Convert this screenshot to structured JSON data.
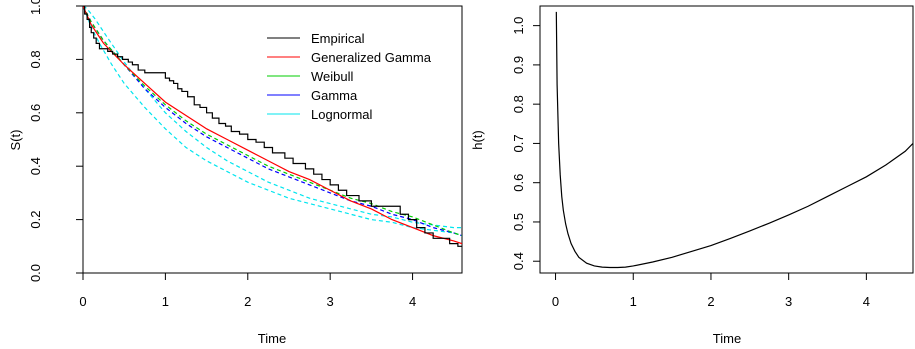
{
  "chart_data": [
    {
      "type": "line",
      "xlabel": "Time",
      "ylabel": "S(t)",
      "xlim": [
        0,
        4.6
      ],
      "ylim": [
        0,
        1.0
      ],
      "xticks": [
        "0",
        "1",
        "2",
        "3",
        "4"
      ],
      "yticks": [
        "0.0",
        "0.2",
        "0.4",
        "0.6",
        "0.8",
        "1.0"
      ],
      "grid": false,
      "legend_position": "top-right",
      "legend": [
        {
          "name": "Empirical",
          "color": "#000000"
        },
        {
          "name": "Generalized Gamma",
          "color": "#ff0000"
        },
        {
          "name": "Weibull",
          "color": "#00cd00"
        },
        {
          "name": "Gamma",
          "color": "#0000ff"
        },
        {
          "name": "Lognormal",
          "color": "#00e5ee"
        }
      ],
      "series": [
        {
          "name": "Empirical",
          "style": "step",
          "color": "#000000",
          "x": [
            0,
            0.02,
            0.05,
            0.08,
            0.1,
            0.13,
            0.16,
            0.2,
            0.24,
            0.3,
            0.36,
            0.42,
            0.48,
            0.55,
            0.6,
            0.67,
            0.75,
            0.82,
            1.0,
            1.05,
            1.1,
            1.15,
            1.2,
            1.27,
            1.35,
            1.42,
            1.5,
            1.57,
            1.65,
            1.73,
            1.8,
            1.9,
            2.0,
            2.1,
            2.2,
            2.3,
            2.45,
            2.55,
            2.7,
            2.8,
            2.9,
            3.0,
            3.1,
            3.2,
            3.35,
            3.5,
            3.85,
            3.95,
            4.05,
            4.15,
            4.25,
            4.45,
            4.55
          ],
          "y": [
            1.0,
            0.97,
            0.95,
            0.92,
            0.9,
            0.88,
            0.86,
            0.84,
            0.84,
            0.83,
            0.82,
            0.81,
            0.8,
            0.79,
            0.78,
            0.76,
            0.75,
            0.75,
            0.73,
            0.72,
            0.71,
            0.69,
            0.68,
            0.66,
            0.63,
            0.62,
            0.6,
            0.58,
            0.56,
            0.55,
            0.53,
            0.52,
            0.5,
            0.49,
            0.47,
            0.45,
            0.43,
            0.41,
            0.39,
            0.37,
            0.35,
            0.33,
            0.31,
            0.29,
            0.27,
            0.25,
            0.22,
            0.2,
            0.17,
            0.15,
            0.13,
            0.11,
            0.1
          ]
        },
        {
          "name": "Generalized Gamma",
          "style": "solid",
          "color": "#ff0000",
          "x": [
            0,
            0.1,
            0.25,
            0.5,
            0.75,
            1.0,
            1.25,
            1.5,
            1.75,
            2.0,
            2.25,
            2.5,
            2.75,
            3.0,
            3.25,
            3.5,
            3.75,
            4.0,
            4.25,
            4.5,
            4.6
          ],
          "y": [
            1.0,
            0.93,
            0.86,
            0.78,
            0.71,
            0.64,
            0.59,
            0.54,
            0.5,
            0.46,
            0.42,
            0.38,
            0.35,
            0.31,
            0.27,
            0.24,
            0.2,
            0.17,
            0.14,
            0.12,
            0.11
          ]
        },
        {
          "name": "Weibull",
          "style": "dashed",
          "color": "#00cd00",
          "x": [
            0,
            0.1,
            0.25,
            0.5,
            0.75,
            1.0,
            1.25,
            1.5,
            1.75,
            2.0,
            2.25,
            2.5,
            2.75,
            3.0,
            3.25,
            3.5,
            3.75,
            4.0,
            4.25,
            4.5,
            4.6
          ],
          "y": [
            1.0,
            0.94,
            0.87,
            0.78,
            0.7,
            0.63,
            0.57,
            0.52,
            0.48,
            0.44,
            0.4,
            0.37,
            0.34,
            0.31,
            0.28,
            0.26,
            0.23,
            0.21,
            0.18,
            0.15,
            0.14
          ]
        },
        {
          "name": "Gamma",
          "style": "dashed",
          "color": "#0000ff",
          "x": [
            0,
            0.1,
            0.25,
            0.5,
            0.75,
            1.0,
            1.25,
            1.5,
            1.75,
            2.0,
            2.25,
            2.5,
            2.75,
            3.0,
            3.25,
            3.5,
            3.75,
            4.0,
            4.25,
            4.5,
            4.6
          ],
          "y": [
            1.0,
            0.94,
            0.87,
            0.78,
            0.69,
            0.62,
            0.56,
            0.51,
            0.47,
            0.43,
            0.39,
            0.36,
            0.33,
            0.3,
            0.27,
            0.25,
            0.22,
            0.2,
            0.17,
            0.15,
            0.14
          ]
        },
        {
          "name": "Lognormal",
          "style": "dashed",
          "color": "#00e5ee",
          "x": [
            0,
            0.05,
            0.15,
            0.3,
            0.5,
            0.75,
            1.0,
            1.25,
            1.5,
            1.75,
            2.0,
            2.25,
            2.5,
            2.75,
            3.0,
            3.25,
            3.5,
            3.75,
            4.0,
            4.25,
            4.5,
            4.6
          ],
          "y": [
            1.0,
            0.99,
            0.95,
            0.88,
            0.79,
            0.69,
            0.6,
            0.53,
            0.47,
            0.42,
            0.38,
            0.34,
            0.31,
            0.28,
            0.26,
            0.24,
            0.22,
            0.21,
            0.19,
            0.18,
            0.17,
            0.17
          ]
        },
        {
          "name": "Lognormal",
          "style": "dashed",
          "color": "#00e5ee",
          "x": [
            0,
            0.05,
            0.1,
            0.2,
            0.35,
            0.5,
            0.75,
            1.0,
            1.25,
            1.5,
            1.75,
            2.0,
            2.25,
            2.5,
            2.75,
            3.0,
            3.25,
            3.5,
            3.75,
            4.0,
            4.25,
            4.5,
            4.6
          ],
          "y": [
            1.0,
            0.96,
            0.92,
            0.86,
            0.78,
            0.71,
            0.62,
            0.54,
            0.47,
            0.42,
            0.38,
            0.34,
            0.31,
            0.28,
            0.26,
            0.24,
            0.22,
            0.2,
            0.19,
            0.17,
            0.16,
            0.15,
            0.14
          ]
        }
      ]
    },
    {
      "type": "line",
      "xlabel": "Time",
      "ylabel": "h(t)",
      "xlim": [
        -0.2,
        4.6
      ],
      "ylim": [
        0.37,
        1.05
      ],
      "xticks": [
        "0",
        "1",
        "2",
        "3",
        "4"
      ],
      "yticks": [
        "0.4",
        "0.5",
        "0.6",
        "0.7",
        "0.8",
        "0.9",
        "1.0"
      ],
      "grid": false,
      "series": [
        {
          "name": "",
          "style": "solid",
          "color": "#000000",
          "x": [
            0.01,
            0.02,
            0.04,
            0.06,
            0.08,
            0.1,
            0.13,
            0.16,
            0.2,
            0.25,
            0.3,
            0.4,
            0.5,
            0.6,
            0.7,
            0.8,
            0.9,
            1.0,
            1.25,
            1.5,
            1.75,
            2.0,
            2.25,
            2.5,
            2.75,
            3.0,
            3.25,
            3.5,
            3.75,
            4.0,
            4.25,
            4.5,
            4.6
          ],
          "y": [
            1.035,
            0.85,
            0.7,
            0.62,
            0.565,
            0.53,
            0.495,
            0.47,
            0.445,
            0.425,
            0.41,
            0.395,
            0.388,
            0.385,
            0.384,
            0.384,
            0.385,
            0.388,
            0.398,
            0.41,
            0.425,
            0.44,
            0.458,
            0.477,
            0.497,
            0.518,
            0.54,
            0.565,
            0.59,
            0.615,
            0.645,
            0.68,
            0.7
          ]
        }
      ]
    }
  ]
}
